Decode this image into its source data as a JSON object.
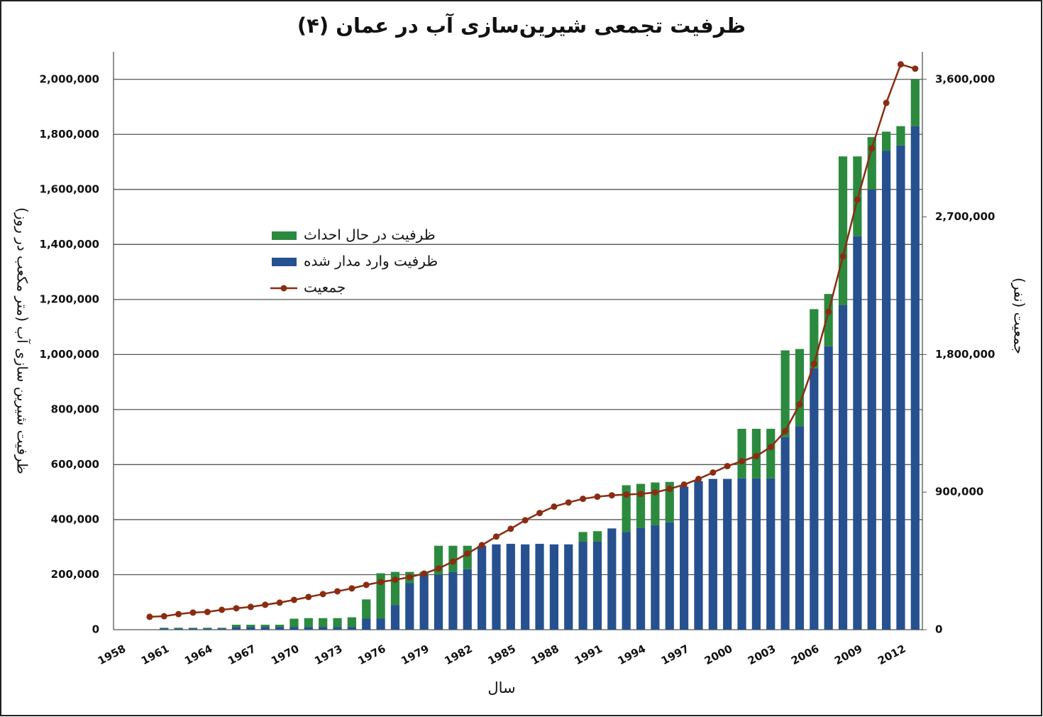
{
  "chart_data": {
    "type": "stacked-bar-line",
    "title": "ظرفیت تجمعی شیرین‌سازی آب در عمان (۴)",
    "x_label": "سال",
    "y_label": "ظرفیت شیرین سازی آب (متر مکعب در روز)",
    "y2_label": "جمعیت (نفر)",
    "categories": [
      "1958",
      null,
      null,
      "1961",
      null,
      null,
      "1964",
      null,
      null,
      "1967",
      null,
      null,
      "1970",
      null,
      null,
      "1973",
      null,
      null,
      "1976",
      null,
      null,
      "1979",
      null,
      null,
      "1982",
      null,
      null,
      "1985",
      null,
      null,
      "1988",
      null,
      null,
      "1991",
      null,
      null,
      "1994",
      null,
      null,
      "1997",
      null,
      null,
      "2000",
      null,
      null,
      "2003",
      null,
      null,
      "2006",
      null,
      null,
      "2009",
      null,
      null,
      "2012",
      null
    ],
    "series": [
      {
        "name": "ظرفیت در حال احداث",
        "color": "#2b8a3e",
        "values": [
          0,
          0,
          0,
          3000,
          3000,
          3000,
          3000,
          3000,
          8000,
          8000,
          8000,
          8000,
          30000,
          32000,
          32000,
          32000,
          35000,
          70000,
          165000,
          120000,
          40000,
          10000,
          105000,
          95000,
          85000,
          0,
          0,
          0,
          0,
          0,
          0,
          0,
          35000,
          38000,
          0,
          170000,
          160000,
          155000,
          147000,
          0,
          0,
          0,
          0,
          180000,
          180000,
          180000,
          315000,
          280000,
          215000,
          190000,
          540000,
          290000,
          190000,
          70000,
          70000,
          170000
        ]
      },
      {
        "name": "ظرفیت وارد مدار شده",
        "color": "#27508f",
        "values": [
          0,
          0,
          0,
          4000,
          4000,
          4000,
          4000,
          4000,
          10000,
          10000,
          10000,
          10000,
          10000,
          10000,
          10000,
          10000,
          10000,
          40000,
          40000,
          90000,
          170000,
          200000,
          200000,
          210000,
          220000,
          305000,
          310000,
          312000,
          310000,
          312000,
          310000,
          310000,
          320000,
          320000,
          368000,
          355000,
          370000,
          380000,
          390000,
          520000,
          540000,
          548000,
          548000,
          550000,
          550000,
          550000,
          700000,
          740000,
          950000,
          1030000,
          1180000,
          1430000,
          1600000,
          1740000,
          1760000,
          1830000
        ]
      },
      {
        "name": "جمعیت",
        "color": "#8b2c12",
        "axis": "y2",
        "values": [
          null,
          null,
          84000,
          88000,
          102000,
          112000,
          116000,
          130000,
          140000,
          149000,
          163000,
          177000,
          195000,
          214000,
          233000,
          251000,
          270000,
          293000,
          312000,
          326000,
          344000,
          367000,
          400000,
          446000,
          498000,
          553000,
          609000,
          660000,
          716000,
          763000,
          805000,
          832000,
          856000,
          870000,
          879000,
          884000,
          888000,
          898000,
          921000,
          949000,
          986000,
          1028000,
          1070000,
          1102000,
          1135000,
          1195000,
          1298000,
          1474000,
          1739000,
          2079000,
          2442000,
          2814000,
          3149000,
          3446000,
          3698000,
          3670000
        ]
      }
    ],
    "ylim": [
      0,
      2100000
    ],
    "yticks": [
      0,
      {
        "value": 200000,
        "label": "200,000"
      },
      {
        "value": 400000,
        "label": "400,000"
      },
      {
        "value": 600000,
        "label": "600,000"
      },
      {
        "value": 800000,
        "label": "800,000"
      },
      {
        "value": 1000000,
        "label": "1,000,000"
      },
      {
        "value": 1200000,
        "label": "1,200,000"
      },
      {
        "value": 1400000,
        "label": "1,400,000"
      },
      {
        "value": 1600000,
        "label": "1,600,000"
      },
      {
        "value": 1800000,
        "label": "1,800,000"
      },
      {
        "value": 2000000,
        "label": "2,000,000"
      }
    ],
    "y2lim": [
      0,
      3780000
    ],
    "y2ticks": [
      0,
      {
        "value": 900000,
        "label": "900,000"
      },
      {
        "value": 1800000,
        "label": "1,800,000"
      },
      {
        "value": 2700000,
        "label": "2,700,000"
      },
      {
        "value": 3600000,
        "label": "3,600,000"
      }
    ],
    "grid": true
  }
}
